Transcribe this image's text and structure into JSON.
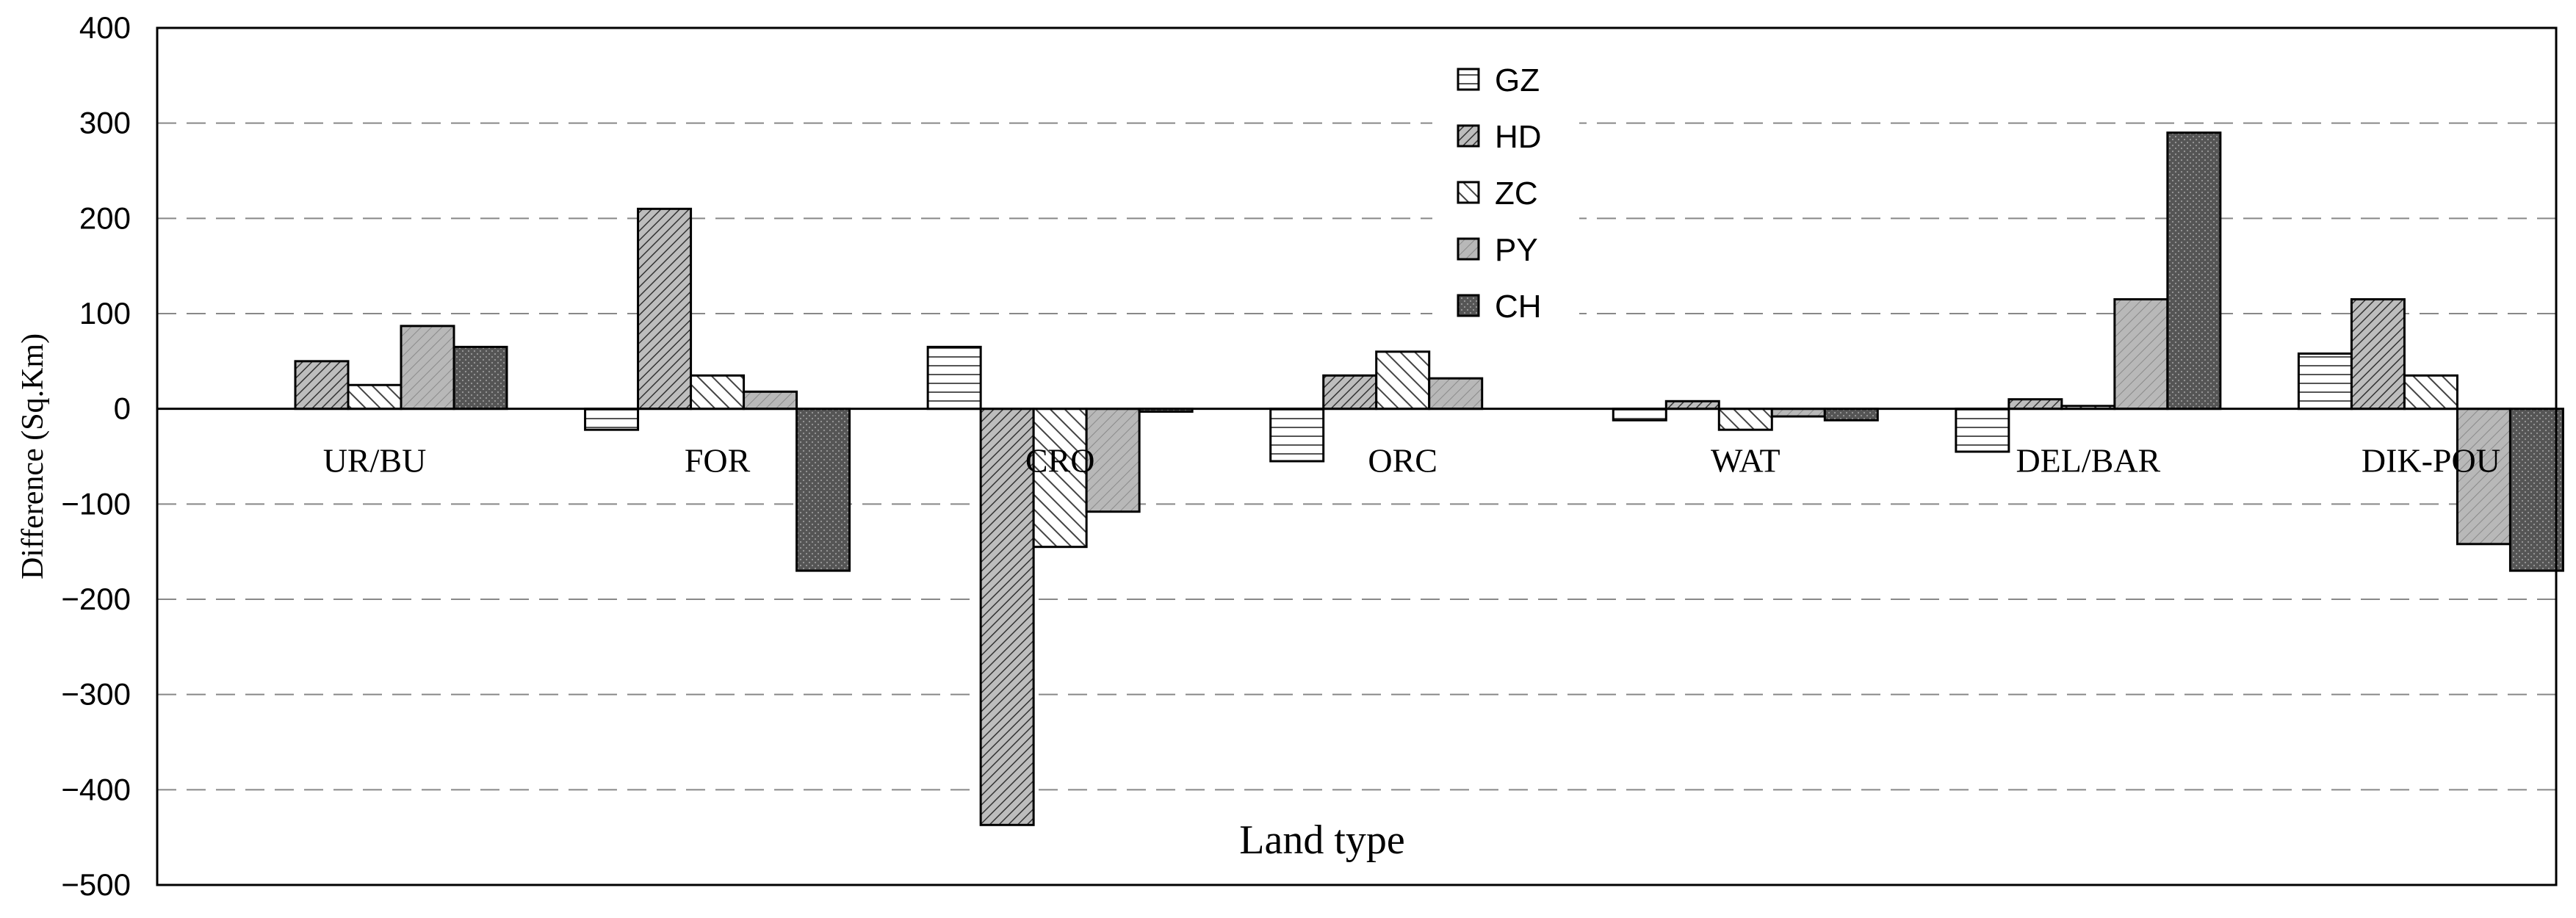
{
  "chart_data": {
    "type": "bar",
    "xlabel": "Land type",
    "ylabel": "Difference (Sq.Km)",
    "ylim": [
      -500,
      400
    ],
    "yticks": [
      400,
      300,
      200,
      100,
      0,
      -100,
      -200,
      -300,
      -400,
      -500
    ],
    "ytick_labels": [
      "400",
      "300",
      "200",
      "100",
      "0",
      "−100",
      "−200",
      "−300",
      "−400",
      "−500"
    ],
    "grid": "dashed horizontal",
    "legend_position": "top-center",
    "categories": [
      "UR/BU",
      "FOR",
      "CRO",
      "ORC",
      "WAT",
      "DEL/BAR",
      "DIK-POU"
    ],
    "series": [
      {
        "name": "GZ",
        "pattern": "horizontal-lines",
        "values": [
          0,
          -22,
          65,
          -55,
          -12,
          -45,
          58
        ]
      },
      {
        "name": "HD",
        "pattern": "diagonal-dense",
        "values": [
          50,
          210,
          -437,
          35,
          8,
          10,
          115
        ]
      },
      {
        "name": "ZC",
        "pattern": "diagonal-back",
        "values": [
          25,
          35,
          -145,
          60,
          -22,
          3,
          35
        ]
      },
      {
        "name": "PY",
        "pattern": "diagonal-light",
        "values": [
          87,
          18,
          -108,
          32,
          -8,
          115,
          -142
        ]
      },
      {
        "name": "CH",
        "pattern": "dark-dotted",
        "values": [
          65,
          -170,
          -3,
          0,
          -12,
          290,
          -170
        ]
      }
    ]
  }
}
